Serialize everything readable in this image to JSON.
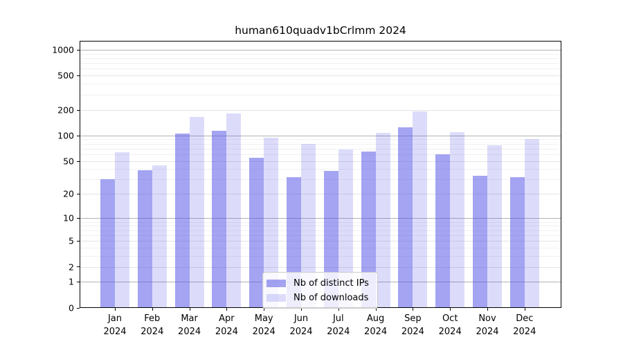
{
  "chart_data": {
    "type": "bar",
    "title": "human610quadv1bCrlmm 2024",
    "scale": "log10(1+x)",
    "ylim": [
      0,
      1300
    ],
    "grid": true,
    "legend_position": "lower center",
    "categories": [
      "Jan 2024",
      "Feb 2024",
      "Mar 2024",
      "Apr 2024",
      "May 2024",
      "Jun 2024",
      "Jul 2024",
      "Aug 2024",
      "Sep 2024",
      "Oct 2024",
      "Nov 2024",
      "Dec 2024"
    ],
    "x_tick_months": [
      "Jan",
      "Feb",
      "Mar",
      "Apr",
      "May",
      "Jun",
      "Jul",
      "Aug",
      "Sep",
      "Oct",
      "Nov",
      "Dec"
    ],
    "x_tick_year": "2024",
    "y_ticks": [
      0,
      1,
      2,
      5,
      10,
      20,
      50,
      100,
      200,
      500,
      1000
    ],
    "y_gridlines": {
      "decade": [
        1,
        10,
        100,
        1000
      ],
      "mid": [
        2,
        5,
        20,
        50,
        200,
        500
      ],
      "minor": [
        3,
        4,
        6,
        7,
        8,
        9,
        30,
        40,
        60,
        70,
        80,
        90,
        300,
        400,
        600,
        700,
        800,
        900
      ]
    },
    "series": [
      {
        "name": "Nb of distinct IPs",
        "color": "rgba(80, 80, 230, 0.52)",
        "values": [
          30,
          39,
          106,
          114,
          55,
          32,
          38,
          65,
          124,
          60,
          33,
          32
        ]
      },
      {
        "name": "Nb of downloads",
        "color": "rgba(80, 80, 230, 0.20)",
        "values": [
          63,
          44,
          164,
          181,
          94,
          80,
          68,
          107,
          190,
          109,
          77,
          90
        ]
      }
    ],
    "colors": {
      "axis": "#000000",
      "grid_decade": "#b2b2b2",
      "grid_mid": "#e3e3e3",
      "grid_minor": "#f0f0f0",
      "background": "#ffffff"
    }
  }
}
